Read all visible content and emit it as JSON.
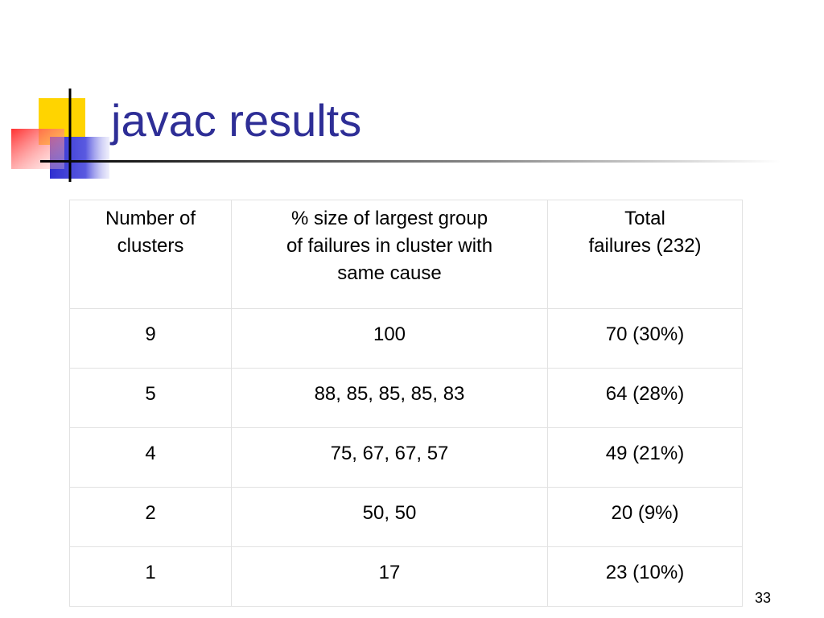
{
  "title": "javac results",
  "table": {
    "header": [
      "Number of\nclusters",
      "% size of largest group\nof failures in cluster with\nsame cause",
      "Total\nfailures (232)"
    ],
    "rows": [
      [
        "9",
        "100",
        "70 (30%)"
      ],
      [
        "5",
        "88, 85, 85, 85, 83",
        "64 (28%)"
      ],
      [
        "4",
        "75, 67, 67, 57",
        "49 (21%)"
      ],
      [
        "2",
        "50, 50",
        "20 (9%)"
      ],
      [
        "1",
        "17",
        "23 (10%)"
      ]
    ]
  },
  "page_number": "33"
}
